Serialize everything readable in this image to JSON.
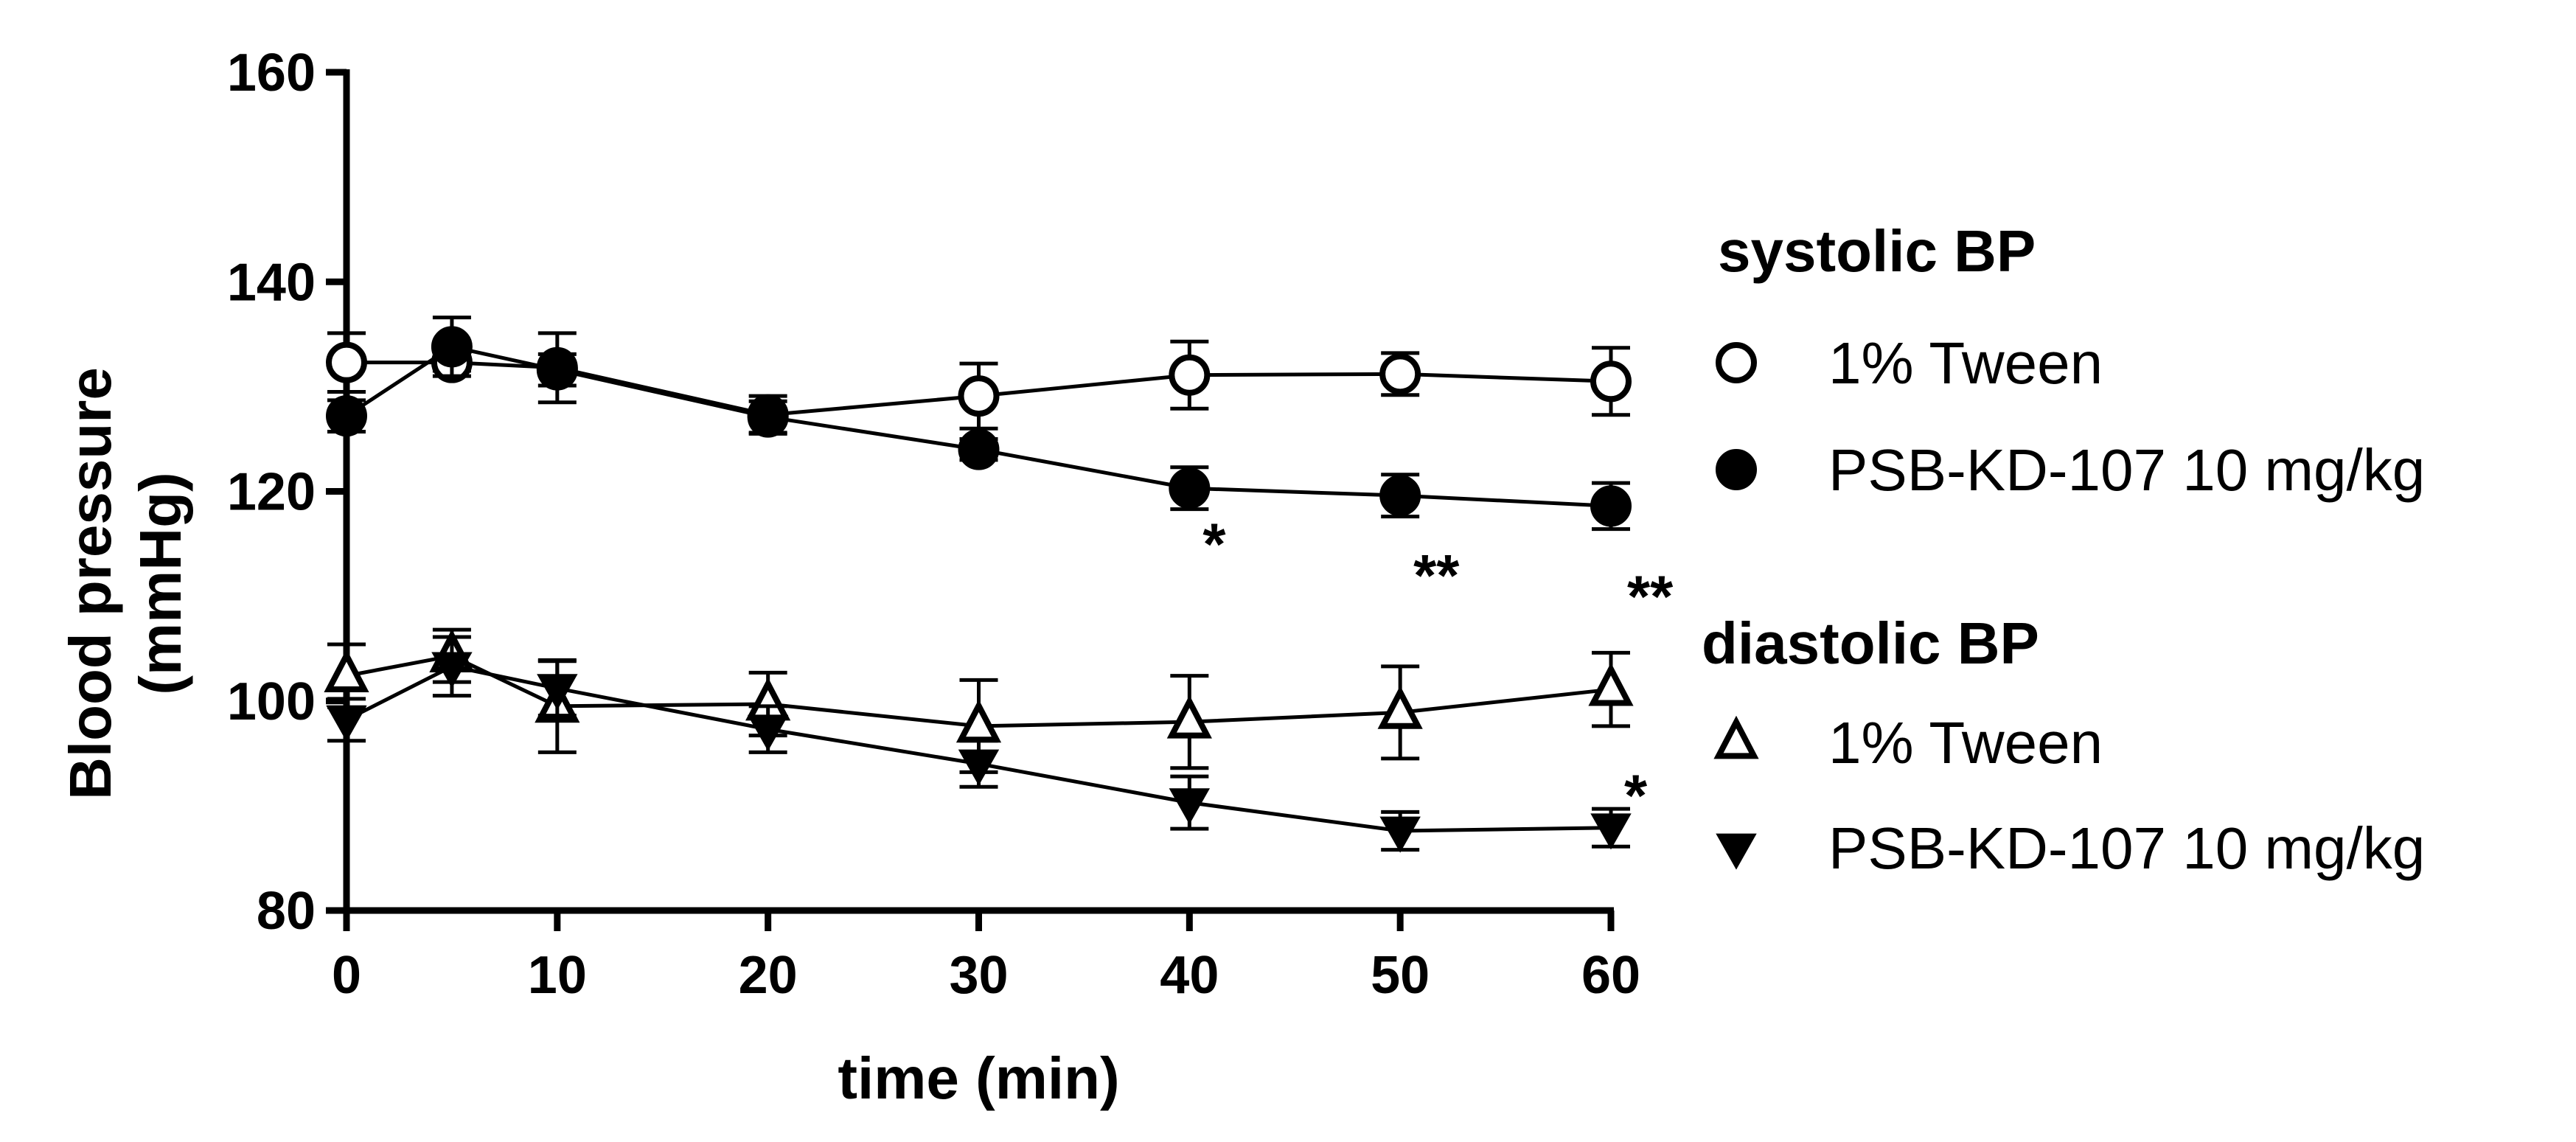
{
  "chart_data": {
    "type": "line",
    "title": "",
    "xlabel": "time (min)",
    "ylabel": "Blood pressure (mmHg)",
    "ylabel_lines": [
      "Blood pressure",
      "(mmHg)"
    ],
    "xlim": [
      0,
      60
    ],
    "ylim": [
      80,
      160
    ],
    "x_ticks": [
      0,
      10,
      20,
      30,
      40,
      50,
      60
    ],
    "y_ticks": [
      80,
      100,
      120,
      140,
      160
    ],
    "x_tick_labels": [
      "0",
      "10",
      "20",
      "30",
      "40",
      "50",
      "60"
    ],
    "y_tick_labels": [
      "80",
      "100",
      "120",
      "140",
      "160"
    ],
    "grid": false,
    "legend_position": "right",
    "legend_groups": [
      {
        "title": "systolic BP",
        "series_indices": [
          0,
          1
        ]
      },
      {
        "title": "diastolic BP",
        "series_indices": [
          2,
          3
        ]
      }
    ],
    "series": [
      {
        "name": "1% Tween",
        "group": "systolic BP",
        "marker": "circle-open",
        "x": [
          0,
          5,
          10,
          20,
          30,
          40,
          50,
          60
        ],
        "y": [
          132.3,
          132.3,
          131.8,
          127.3,
          129.1,
          131.1,
          131.2,
          130.5
        ],
        "err": [
          2.8,
          0.8,
          3.3,
          1.8,
          3.1,
          3.2,
          2.0,
          3.2
        ]
      },
      {
        "name": "PSB-KD-107 10 mg/kg",
        "group": "systolic BP",
        "marker": "circle-filled",
        "x": [
          0,
          5,
          10,
          20,
          30,
          40,
          50,
          60
        ],
        "y": [
          127.2,
          133.8,
          131.6,
          127.1,
          124.0,
          120.3,
          119.6,
          118.6
        ],
        "err": [
          1.5,
          2.8,
          1.5,
          1.5,
          1.0,
          2.0,
          2.0,
          2.2
        ]
      },
      {
        "name": "1% Tween",
        "group": "diastolic BP",
        "marker": "triangle-up-open",
        "x": [
          0,
          5,
          10,
          20,
          30,
          40,
          50,
          60
        ],
        "y": [
          102.4,
          104.3,
          99.5,
          99.7,
          97.6,
          98.0,
          98.9,
          101.1
        ],
        "err": [
          3.0,
          2.5,
          4.4,
          3.0,
          4.4,
          4.4,
          4.4,
          3.5
        ]
      },
      {
        "name": "PSB-KD-107 10 mg/kg",
        "group": "diastolic BP",
        "marker": "triangle-down-filled",
        "x": [
          0,
          5,
          10,
          20,
          30,
          40,
          50,
          60
        ],
        "y": [
          98.2,
          103.3,
          101.2,
          97.3,
          94.0,
          90.3,
          87.6,
          87.9
        ],
        "err": [
          2.0,
          2.8,
          2.6,
          2.2,
          2.2,
          2.5,
          1.8,
          1.8
        ]
      }
    ],
    "annotations": [
      {
        "text": "*",
        "x": 40,
        "y": 115
      },
      {
        "text": "**",
        "x": 50,
        "y": 112
      },
      {
        "text": "**",
        "x": 60,
        "y": 110
      },
      {
        "text": "*",
        "x": 60,
        "y": 91
      }
    ]
  }
}
